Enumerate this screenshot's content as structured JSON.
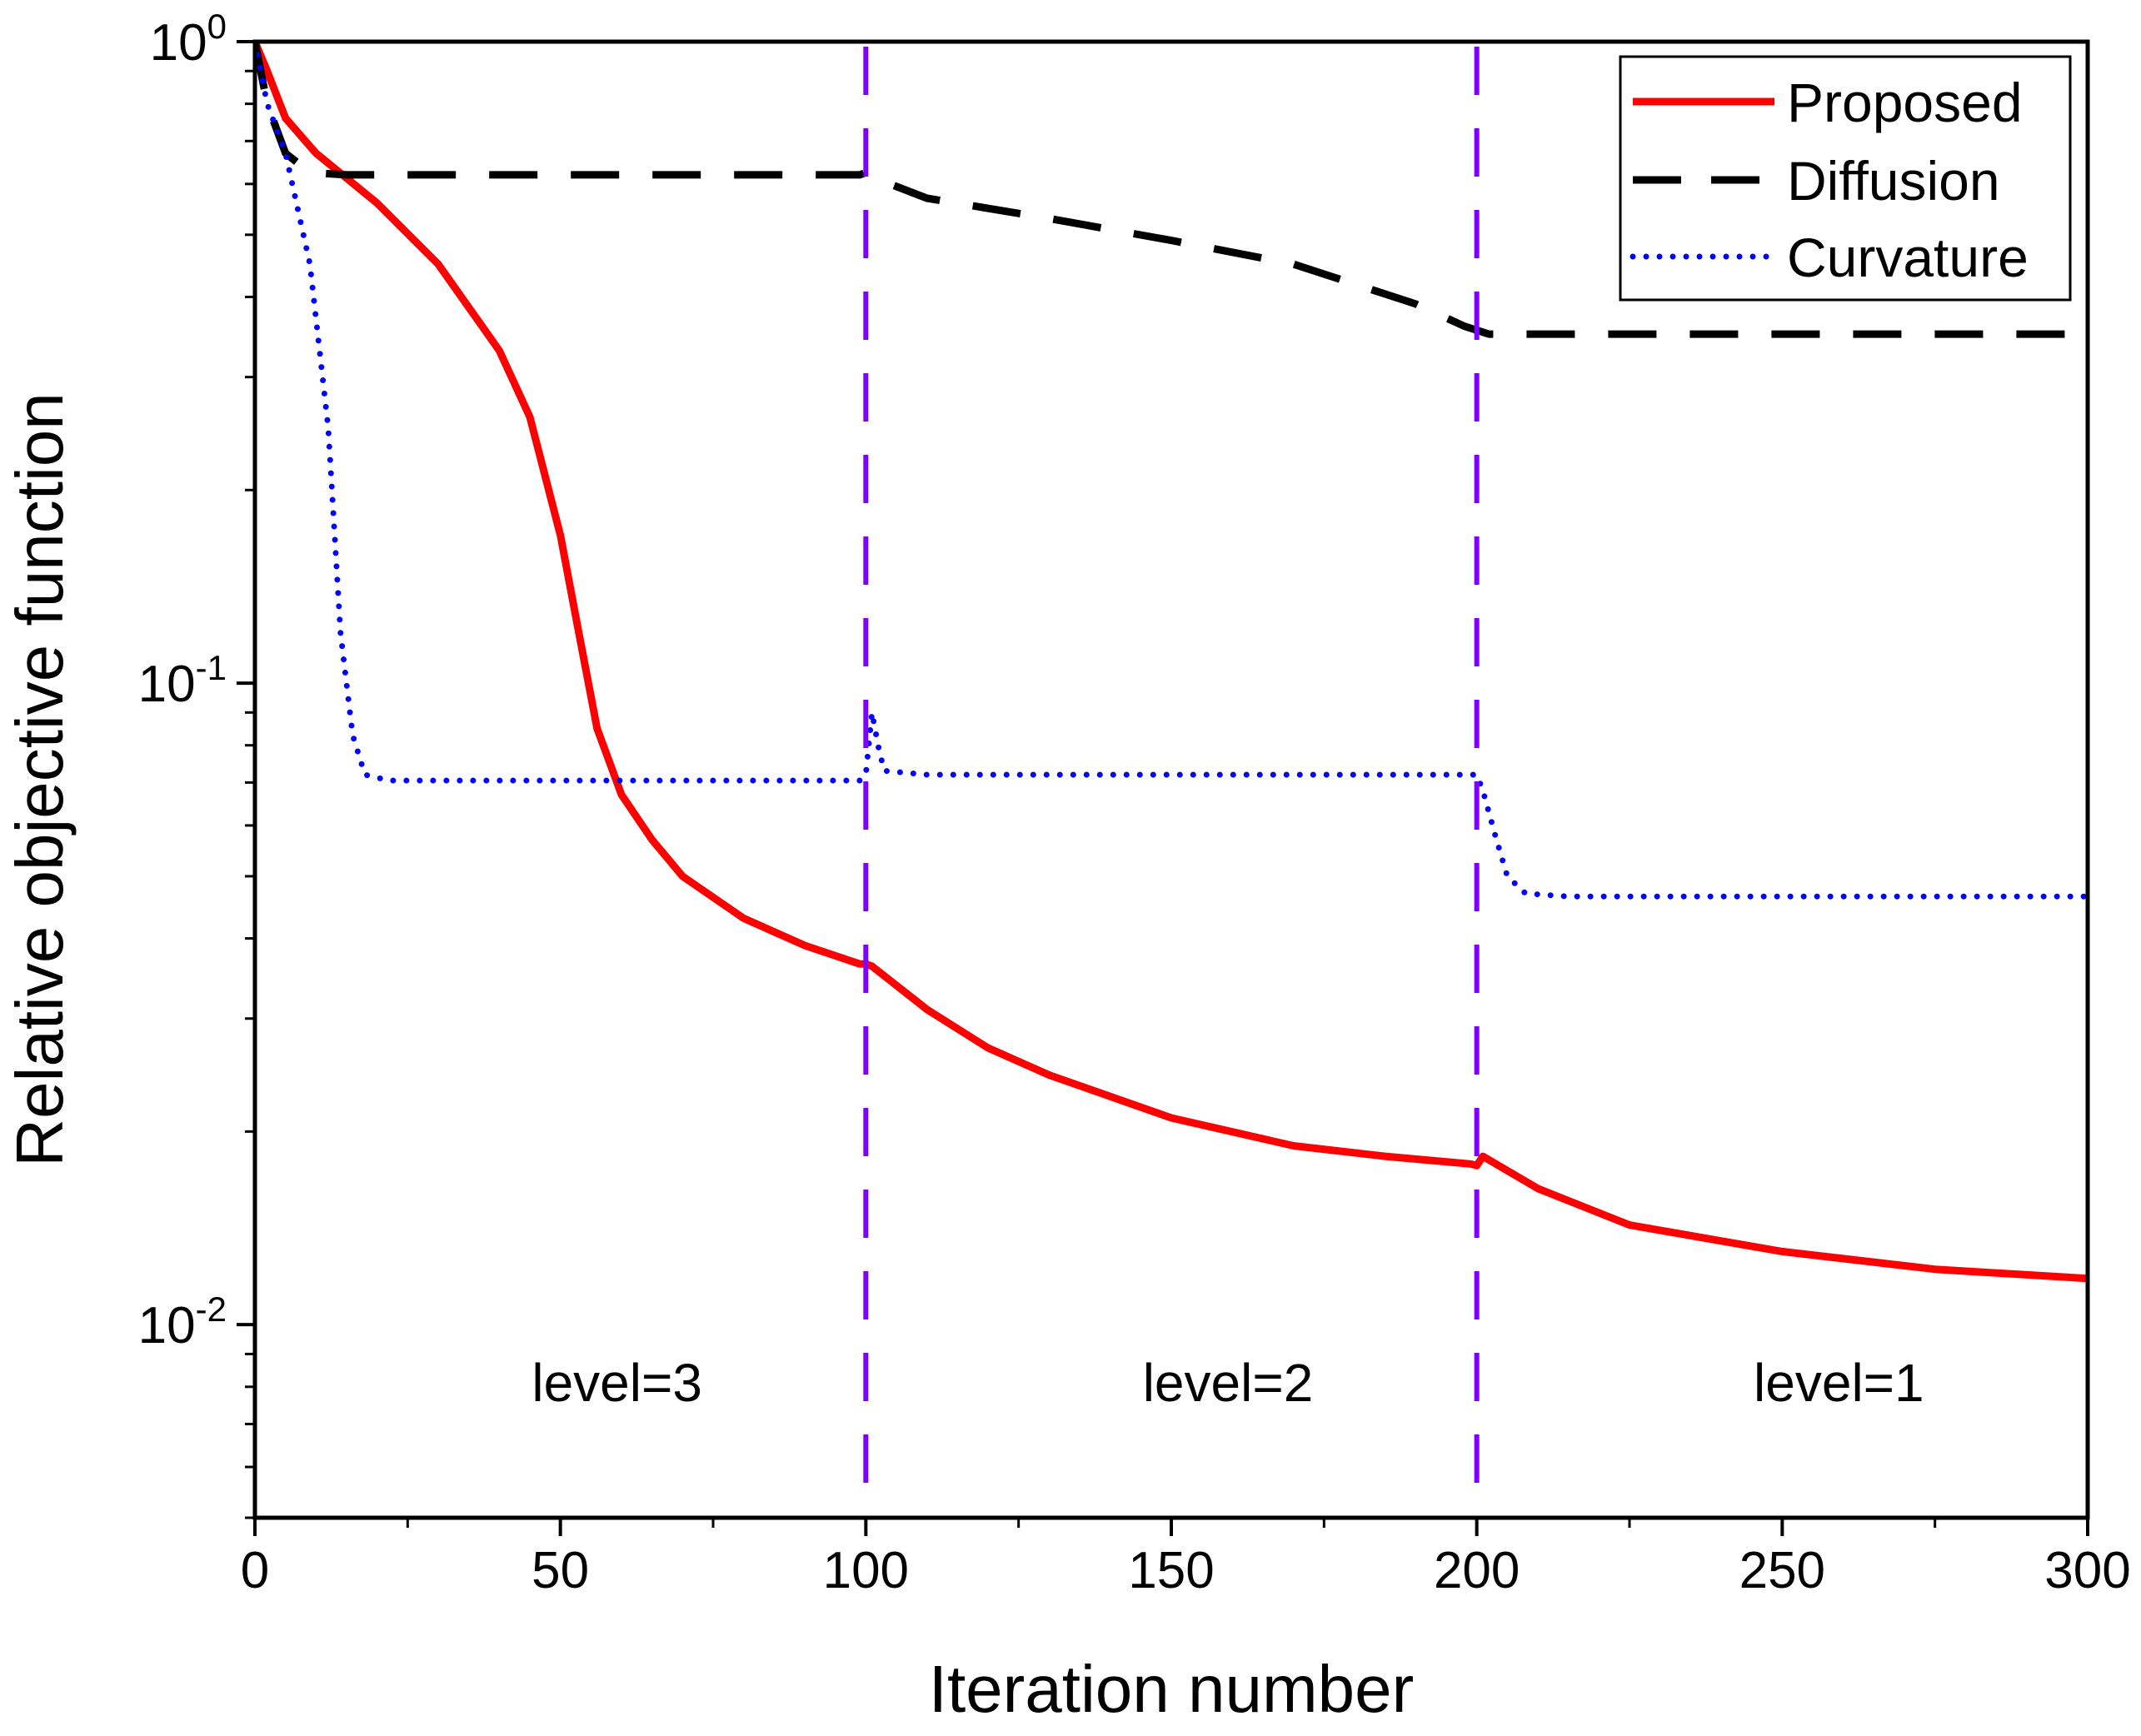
{
  "chart_data": {
    "type": "line",
    "xlabel": "Iteration number",
    "ylabel": "Relative objective function",
    "xlim": [
      0,
      300
    ],
    "ylim": [
      0.005,
      1
    ],
    "yscale": "log",
    "x_ticks": [
      0,
      50,
      100,
      150,
      200,
      250,
      300
    ],
    "x_tick_labels": [
      "0",
      "50",
      "100",
      "150",
      "200",
      "250",
      "300"
    ],
    "y_ticks": [
      {
        "value": 1,
        "base": "10",
        "exp": "0"
      },
      {
        "value": 0.1,
        "base": "10",
        "exp": "-1"
      },
      {
        "value": 0.01,
        "base": "10",
        "exp": "-2"
      }
    ],
    "legend_position": "top-right",
    "series": [
      {
        "name": "Proposed",
        "color": "#ff0000",
        "style": "solid",
        "points": [
          [
            0,
            1.0
          ],
          [
            2,
            0.9
          ],
          [
            5,
            0.76
          ],
          [
            10,
            0.67
          ],
          [
            20,
            0.56
          ],
          [
            30,
            0.45
          ],
          [
            40,
            0.33
          ],
          [
            45,
            0.26
          ],
          [
            50,
            0.17
          ],
          [
            53,
            0.12
          ],
          [
            56,
            0.085
          ],
          [
            60,
            0.067
          ],
          [
            65,
            0.057
          ],
          [
            70,
            0.05
          ],
          [
            80,
            0.043
          ],
          [
            90,
            0.039
          ],
          [
            99,
            0.0365
          ],
          [
            100,
            0.0365
          ],
          [
            101,
            0.0362
          ],
          [
            110,
            0.031
          ],
          [
            120,
            0.027
          ],
          [
            130,
            0.0245
          ],
          [
            150,
            0.021
          ],
          [
            170,
            0.019
          ],
          [
            185,
            0.0183
          ],
          [
            199,
            0.0178
          ],
          [
            200,
            0.0177
          ],
          [
            201,
            0.0183
          ],
          [
            210,
            0.0163
          ],
          [
            225,
            0.0143
          ],
          [
            250,
            0.013
          ],
          [
            275,
            0.0122
          ],
          [
            300,
            0.0118
          ]
        ]
      },
      {
        "name": "Diffusion",
        "color": "#000000",
        "style": "dashed",
        "points": [
          [
            0,
            1.0
          ],
          [
            2,
            0.8
          ],
          [
            5,
            0.67
          ],
          [
            9,
            0.625
          ],
          [
            15,
            0.62
          ],
          [
            50,
            0.62
          ],
          [
            99,
            0.62
          ],
          [
            100,
            0.625
          ],
          [
            102,
            0.61
          ],
          [
            110,
            0.57
          ],
          [
            130,
            0.53
          ],
          [
            150,
            0.49
          ],
          [
            170,
            0.45
          ],
          [
            190,
            0.39
          ],
          [
            198,
            0.36
          ],
          [
            200,
            0.355
          ],
          [
            202,
            0.35
          ],
          [
            205,
            0.35
          ],
          [
            300,
            0.35
          ]
        ]
      },
      {
        "name": "Curvature",
        "color": "#0000ff",
        "style": "dotted",
        "points": [
          [
            0,
            1.0
          ],
          [
            2,
            0.8
          ],
          [
            5,
            0.67
          ],
          [
            9,
            0.45
          ],
          [
            12,
            0.25
          ],
          [
            14,
            0.12
          ],
          [
            16,
            0.083
          ],
          [
            18,
            0.072
          ],
          [
            22,
            0.0705
          ],
          [
            50,
            0.0705
          ],
          [
            99,
            0.0705
          ],
          [
            100,
            0.072
          ],
          [
            101,
            0.09
          ],
          [
            102,
            0.08
          ],
          [
            103,
            0.073
          ],
          [
            110,
            0.072
          ],
          [
            150,
            0.072
          ],
          [
            200,
            0.072
          ],
          [
            201,
            0.068
          ],
          [
            203,
            0.058
          ],
          [
            205,
            0.05
          ],
          [
            208,
            0.047
          ],
          [
            215,
            0.0465
          ],
          [
            300,
            0.0465
          ]
        ]
      }
    ],
    "vertical_lines": [
      {
        "x": 100,
        "color": "#8000ff",
        "style": "dashed"
      },
      {
        "x": 200,
        "color": "#8000ff",
        "style": "dashed"
      }
    ],
    "annotations": [
      {
        "text": "level=3",
        "x": 47,
        "y": 0.0072
      },
      {
        "text": "level=2",
        "x": 147,
        "y": 0.0072
      },
      {
        "text": "level=1",
        "x": 247,
        "y": 0.0072
      }
    ]
  }
}
